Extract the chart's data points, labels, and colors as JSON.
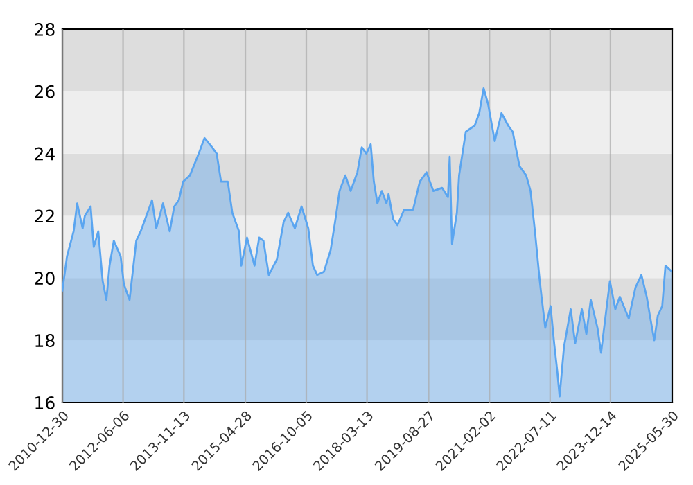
{
  "chart_data": {
    "type": "area",
    "x": [
      "2010-12-30",
      "2011-02-08",
      "2011-04-06",
      "2011-05-07",
      "2011-06-23",
      "2011-07-12",
      "2011-08-31",
      "2011-09-27",
      "2011-11-05",
      "2011-12-13",
      "2012-01-14",
      "2012-02-10",
      "2012-03-18",
      "2012-05-16",
      "2012-06-13",
      "2012-08-01",
      "2012-09-28",
      "2012-11-05",
      "2013-02-11",
      "2013-03-20",
      "2013-05-17",
      "2013-07-14",
      "2013-08-22",
      "2013-09-30",
      "2013-11-07",
      "2014-01-04",
      "2014-03-21",
      "2014-05-10",
      "2014-07-15",
      "2014-08-23",
      "2014-09-30",
      "2014-11-27",
      "2015-01-05",
      "2015-03-04",
      "2015-03-23",
      "2015-05-12",
      "2015-07-16",
      "2015-08-25",
      "2015-10-01",
      "2015-11-16",
      "2016-01-25",
      "2016-03-23",
      "2016-05-01",
      "2016-06-28",
      "2016-08-25",
      "2016-10-22",
      "2016-12-01",
      "2017-01-07",
      "2017-03-06",
      "2017-05-03",
      "2017-06-10",
      "2017-07-19",
      "2017-09-07",
      "2017-10-23",
      "2017-12-20",
      "2018-01-27",
      "2018-03-07",
      "2018-04-14",
      "2018-05-11",
      "2018-06-11",
      "2018-07-19",
      "2018-08-28",
      "2018-09-15",
      "2018-10-24",
      "2018-12-01",
      "2019-01-28",
      "2019-04-15",
      "2019-06-12",
      "2019-08-09",
      "2019-10-06",
      "2019-12-21",
      "2020-02-10",
      "2020-02-25",
      "2020-03-16",
      "2020-04-27",
      "2020-05-16",
      "2020-07-13",
      "2020-09-28",
      "2020-11-06",
      "2020-12-14",
      "2021-01-21",
      "2021-03-20",
      "2021-05-17",
      "2021-07-14",
      "2021-08-22",
      "2021-10-19",
      "2021-12-16",
      "2022-01-23",
      "2022-03-02",
      "2022-04-10",
      "2022-04-28",
      "2022-05-30",
      "2022-07-15",
      "2022-08-15",
      "2022-09-11",
      "2022-10-01",
      "2022-11-08",
      "2023-01-05",
      "2023-02-12",
      "2023-04-11",
      "2023-05-20",
      "2023-06-27",
      "2023-08-24",
      "2023-09-24",
      "2023-11-09",
      "2023-12-09",
      "2024-01-25",
      "2024-03-04",
      "2024-05-20",
      "2024-07-17",
      "2024-09-06",
      "2024-10-22",
      "2024-11-18",
      "2024-12-26",
      "2025-01-26",
      "2025-03-05",
      "2025-04-02",
      "2025-05-30"
    ],
    "series": [
      {
        "color": "#5aa5f0",
        "values": [
          19.6,
          20.7,
          21.5,
          22.4,
          21.6,
          22.0,
          22.3,
          21.0,
          21.5,
          19.9,
          19.3,
          20.4,
          21.2,
          20.7,
          19.8,
          19.3,
          21.2,
          21.5,
          22.5,
          21.6,
          22.4,
          21.5,
          22.3,
          22.5,
          23.1,
          23.3,
          24.0,
          24.5,
          24.2,
          24.0,
          23.1,
          23.1,
          22.1,
          21.5,
          20.4,
          21.3,
          20.4,
          21.3,
          21.2,
          20.1,
          20.6,
          21.8,
          22.1,
          21.6,
          22.3,
          21.6,
          20.4,
          20.1,
          20.2,
          20.9,
          21.8,
          22.8,
          23.3,
          22.8,
          23.4,
          24.2,
          24.0,
          24.3,
          23.1,
          22.4,
          22.8,
          22.4,
          22.7,
          21.9,
          21.7,
          22.2,
          22.2,
          23.1,
          23.4,
          22.8,
          22.9,
          22.6,
          23.9,
          21.1,
          22.1,
          23.3,
          24.7,
          24.9,
          25.3,
          26.1,
          25.6,
          24.4,
          25.3,
          24.9,
          24.7,
          23.6,
          23.3,
          22.8,
          21.5,
          20.0,
          19.4,
          18.4,
          19.1,
          17.9,
          17.0,
          16.2,
          17.8,
          19.0,
          17.9,
          19.0,
          18.2,
          19.3,
          18.4,
          17.6,
          19.0,
          19.9,
          19.0,
          19.4,
          18.7,
          19.7,
          20.1,
          19.4,
          18.8,
          18.0,
          18.8,
          19.1,
          20.4,
          20.2
        ]
      }
    ],
    "xlim": [
      "2010-12-30",
      "2025-05-30"
    ],
    "xticks": [
      {
        "value": "2010-12-30",
        "label": "2010-12-30"
      },
      {
        "value": "2012-06-06",
        "label": "2012-06-06"
      },
      {
        "value": "2013-11-13",
        "label": "2013-11-13"
      },
      {
        "value": "2015-04-28",
        "label": "2015-04-28"
      },
      {
        "value": "2016-10-05",
        "label": "2016-10-05"
      },
      {
        "value": "2018-03-13",
        "label": "2018-03-13"
      },
      {
        "value": "2019-08-27",
        "label": "2019-08-27"
      },
      {
        "value": "2021-02-02",
        "label": "2021-02-02"
      },
      {
        "value": "2022-07-11",
        "label": "2022-07-11"
      },
      {
        "value": "2023-12-14",
        "label": "2023-12-14"
      },
      {
        "value": "2025-05-30",
        "label": "2025-05-30"
      }
    ],
    "ylim": [
      16,
      28
    ],
    "yticks": [
      16,
      18,
      20,
      22,
      24,
      26,
      28
    ],
    "bands": [
      {
        "axis": "y",
        "from": 16,
        "to": 18,
        "color": "#eeeeee"
      },
      {
        "axis": "y",
        "from": 18,
        "to": 20,
        "color": "#dddddd"
      },
      {
        "axis": "y",
        "from": 20,
        "to": 22,
        "color": "#eeeeee"
      },
      {
        "axis": "y",
        "from": 22,
        "to": 24,
        "color": "#dddddd"
      },
      {
        "axis": "y",
        "from": 24,
        "to": 26,
        "color": "#eeeeee"
      },
      {
        "axis": "y",
        "from": 26,
        "to": 28,
        "color": "#dddddd"
      }
    ],
    "grid": "x",
    "legend": false
  }
}
